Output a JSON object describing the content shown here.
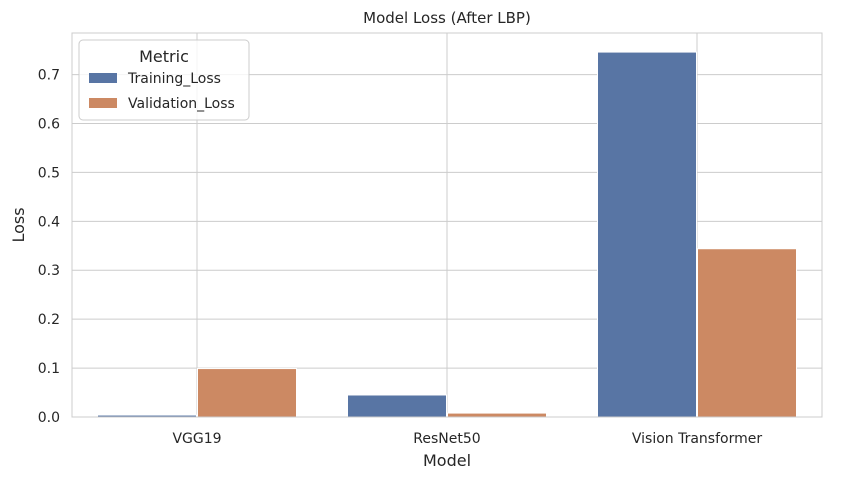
{
  "chart_data": {
    "type": "bar",
    "title": "Model Loss (After LBP)",
    "xlabel": "Model",
    "ylabel": "Loss",
    "categories": [
      "VGG19",
      "ResNet50",
      "Vision Transformer"
    ],
    "series": [
      {
        "name": "Training_Loss",
        "color": "#5875a4",
        "values": [
          0.004,
          0.045,
          0.746
        ]
      },
      {
        "name": "Validation_Loss",
        "color": "#cc8963",
        "values": [
          0.099,
          0.008,
          0.344
        ]
      }
    ],
    "ylim": [
      0,
      0.785
    ],
    "yticks": [
      0.0,
      0.1,
      0.2,
      0.3,
      0.4,
      0.5,
      0.6,
      0.7
    ],
    "ytick_labels": [
      "0.0",
      "0.1",
      "0.2",
      "0.3",
      "0.4",
      "0.5",
      "0.6",
      "0.7"
    ],
    "grid": true,
    "legend": {
      "title": "Metric",
      "position": "top-left"
    }
  }
}
